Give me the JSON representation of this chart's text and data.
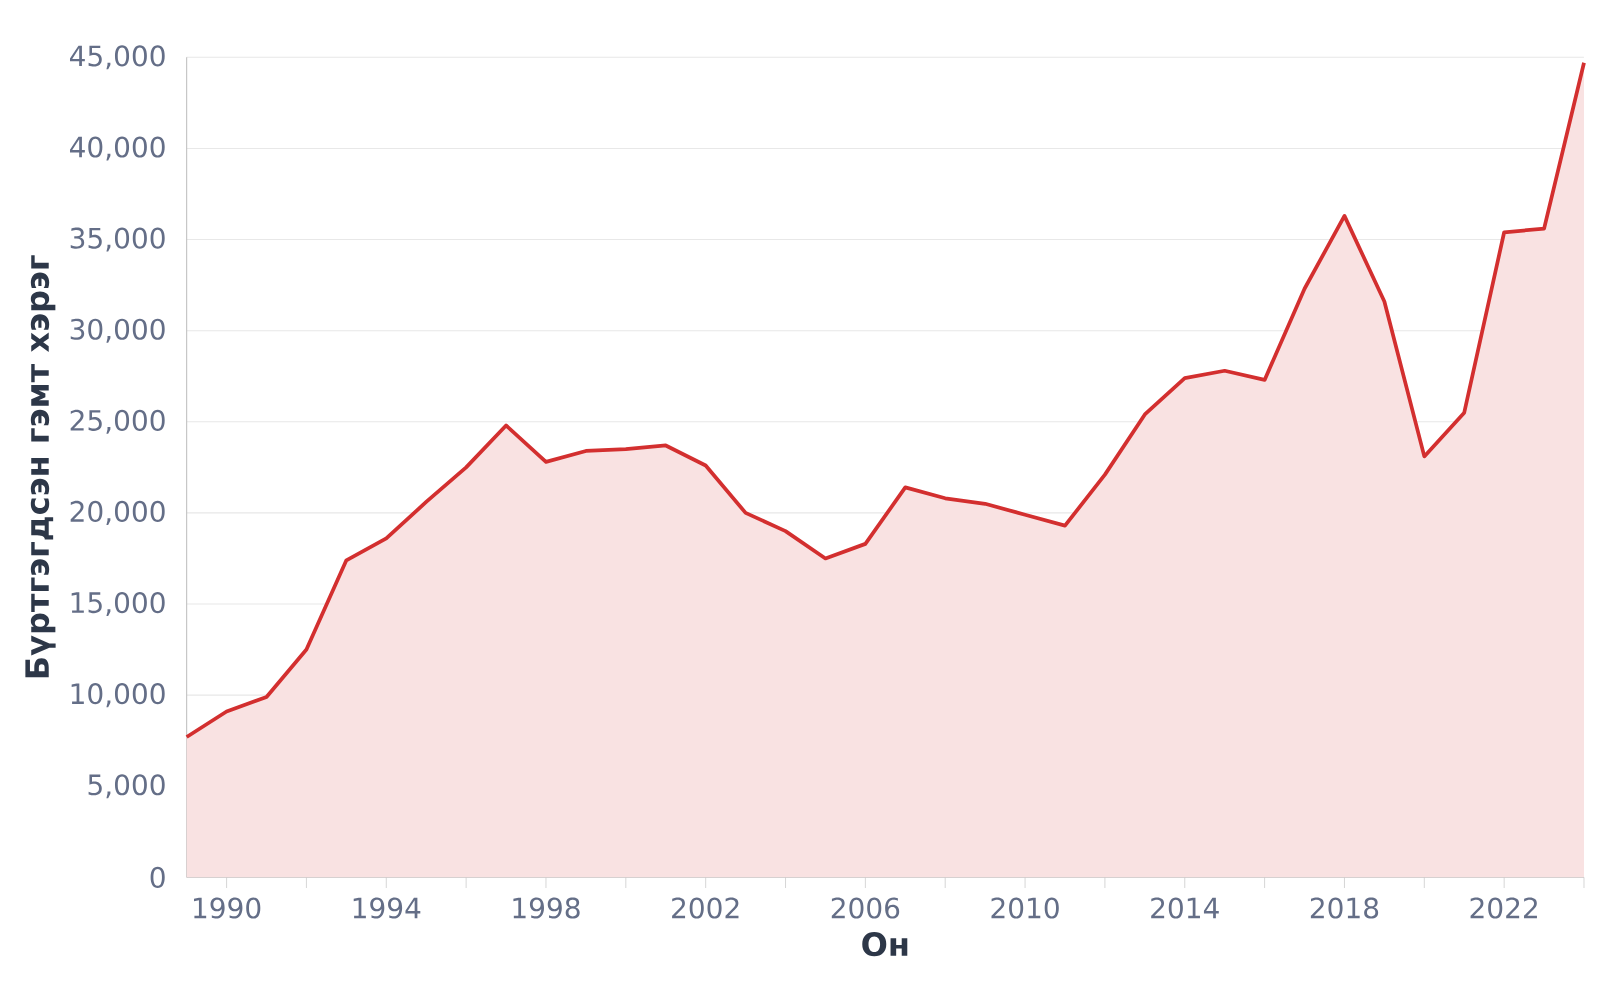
{
  "chart_data": {
    "type": "area",
    "xlabel": "Он",
    "ylabel": "Бүртгэгдсэн гэмт хэрэг",
    "x": [
      1989,
      1990,
      1991,
      1992,
      1993,
      1994,
      1995,
      1996,
      1997,
      1998,
      1999,
      2000,
      2001,
      2002,
      2003,
      2004,
      2005,
      2006,
      2007,
      2008,
      2009,
      2010,
      2011,
      2012,
      2013,
      2014,
      2015,
      2016,
      2017,
      2018,
      2019,
      2020,
      2021,
      2022,
      2023,
      2024
    ],
    "series": [
      {
        "color": "#d32f2f",
        "values": [
          7700,
          9100,
          9900,
          12500,
          17400,
          18600,
          20600,
          22500,
          24800,
          22800,
          23400,
          23500,
          23700,
          22600,
          20000,
          19000,
          17500,
          18300,
          21400,
          20800,
          20500,
          19900,
          19300,
          22100,
          25400,
          27400,
          27800,
          27300,
          32300,
          36300,
          31600,
          23100,
          25500,
          35400,
          35600,
          44700
        ]
      }
    ],
    "xlim": [
      1989,
      2024
    ],
    "xticks": [
      1990,
      {
        "value": 1992,
        "label": null
      },
      1994,
      {
        "value": 1996,
        "label": null
      },
      1998,
      {
        "value": 2000,
        "label": null
      },
      2002,
      {
        "value": 2004,
        "label": null
      },
      2006,
      {
        "value": 2008,
        "label": null
      },
      2010,
      {
        "value": 2012,
        "label": null
      },
      2014,
      {
        "value": 2016,
        "label": null
      },
      2018,
      {
        "value": 2020,
        "label": null
      },
      2022,
      {
        "value": 2024,
        "label": null
      }
    ],
    "ylim": [
      0,
      45000
    ],
    "yticks": [
      {
        "value": 0,
        "label": "0"
      },
      {
        "value": 5000,
        "label": "5,000"
      },
      {
        "value": 10000,
        "label": "10,000"
      },
      {
        "value": 15000,
        "label": "15,000"
      },
      {
        "value": 20000,
        "label": "20,000"
      },
      {
        "value": 25000,
        "label": "25,000"
      },
      {
        "value": 30000,
        "label": "30,000"
      },
      {
        "value": 35000,
        "label": "35,000"
      },
      {
        "value": 40000,
        "label": "40,000"
      },
      {
        "value": 45000,
        "label": "45,000"
      }
    ],
    "grid": "y"
  }
}
